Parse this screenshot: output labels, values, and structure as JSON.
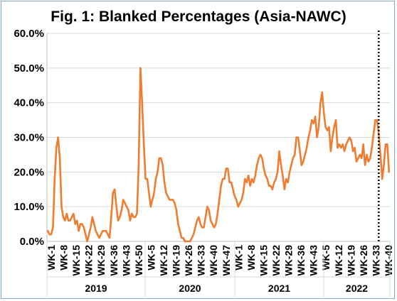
{
  "chart_data": {
    "type": "line",
    "title": "Fig. 1: Blanked Percentages (Asia-NAWC)",
    "xlabel": "",
    "ylabel": "",
    "ylim": [
      0,
      60
    ],
    "y_ticks": [
      "0.0%",
      "10.0%",
      "20.0%",
      "30.0%",
      "40.0%",
      "50.0%",
      "60.0%"
    ],
    "x_tick_labels": [
      "WK-1",
      "WK-8",
      "WK-15",
      "WK-22",
      "WK-29",
      "WK-36",
      "WK-43",
      "WK-50",
      "WK-5",
      "WK-12",
      "WK-19",
      "WK-26",
      "WK-33",
      "WK-40",
      "WK-47",
      "WK-1",
      "WK-8",
      "WK-15",
      "WK-22",
      "WK-29",
      "WK-36",
      "WK-43",
      "WK-5",
      "WK-12",
      "WK-19",
      "WK-26",
      "WK-33",
      "WK-40"
    ],
    "years": [
      "2019",
      "2020",
      "2021",
      "2022"
    ],
    "grid": true,
    "legend": "none",
    "line_color": "#ed7d31",
    "marker_line": {
      "style": "dotted",
      "color": "#000000"
    },
    "series": [
      {
        "values": [
          3,
          2,
          2,
          4,
          18,
          27,
          30,
          24,
          10,
          7,
          6,
          8,
          6,
          6,
          7,
          8,
          5,
          6,
          3,
          5,
          5,
          4,
          2,
          0,
          2,
          4,
          7,
          5,
          3,
          2,
          1,
          2,
          3,
          3,
          3,
          2,
          1,
          7,
          14,
          15,
          10,
          6,
          7,
          9,
          12,
          11,
          10,
          9,
          6,
          8,
          7,
          7,
          8,
          22,
          50,
          40,
          28,
          18,
          18,
          14,
          10,
          12,
          14,
          18,
          20,
          24,
          24,
          22,
          17,
          14,
          13,
          12,
          12,
          12,
          11,
          9,
          5,
          3,
          1,
          1,
          0,
          0,
          0,
          0,
          1,
          2,
          4,
          6,
          7,
          5,
          4,
          4,
          7,
          10,
          9,
          6,
          5,
          4,
          5,
          8,
          12,
          16,
          18,
          18,
          21,
          21,
          17,
          17,
          15,
          13,
          12,
          10,
          11,
          12,
          14,
          18,
          17,
          19,
          16,
          18,
          17,
          19,
          22,
          24,
          25,
          24,
          21,
          19,
          18,
          16,
          16,
          15,
          17,
          18,
          20,
          26,
          22,
          19,
          15,
          18,
          17,
          20,
          22,
          24,
          25,
          30,
          30,
          26,
          22,
          23,
          25,
          27,
          30,
          32,
          35,
          34,
          36,
          30,
          33,
          40,
          43,
          37,
          33,
          32,
          33,
          26,
          30,
          33,
          35,
          27,
          28,
          27,
          28,
          26,
          28,
          29,
          30,
          29,
          26,
          27,
          23,
          24,
          25,
          24,
          28,
          22,
          25,
          23,
          24,
          27,
          31,
          35,
          35,
          31,
          25,
          18,
          22,
          28,
          28,
          20
        ]
      }
    ],
    "marker_x_index": 193
  }
}
